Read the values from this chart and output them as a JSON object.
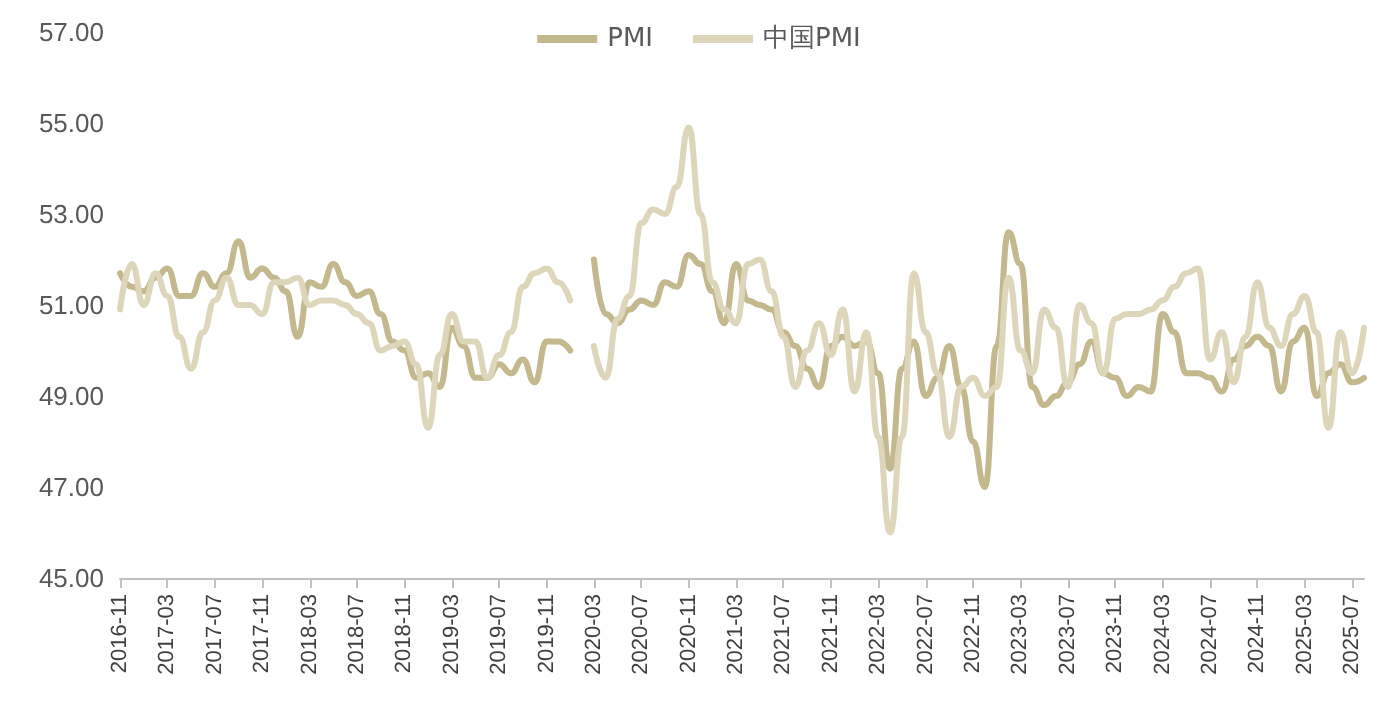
{
  "chart_data": {
    "type": "line",
    "categories": [
      "2016-11",
      null,
      null,
      null,
      "2017-03",
      null,
      null,
      null,
      "2017-07",
      null,
      null,
      null,
      "2017-11",
      null,
      null,
      null,
      "2018-03",
      null,
      null,
      null,
      "2018-07",
      null,
      null,
      null,
      "2018-11",
      null,
      null,
      null,
      "2019-03",
      null,
      null,
      null,
      "2019-07",
      null,
      null,
      null,
      "2019-11",
      null,
      null,
      null,
      "2020-03",
      null,
      null,
      null,
      "2020-07",
      null,
      null,
      null,
      "2020-11",
      null,
      null,
      null,
      "2021-03",
      null,
      null,
      null,
      "2021-07",
      null,
      null,
      null,
      "2021-11",
      null,
      null,
      null,
      "2022-03",
      null,
      null,
      null,
      "2022-07",
      null,
      null,
      null,
      "2022-11",
      null,
      null,
      null,
      "2023-03",
      null,
      null,
      null,
      "2023-07",
      null,
      null,
      null,
      "2023-11",
      null,
      null,
      null,
      "2024-03",
      null,
      null,
      null,
      "2024-07",
      null,
      null,
      null,
      "2024-11",
      null,
      null,
      null,
      "2025-03",
      null,
      null,
      null,
      "2025-07",
      null
    ],
    "series": [
      {
        "name": "PMI",
        "color": "#c4b88e",
        "values": [
          51.7,
          51.4,
          51.3,
          51.6,
          51.8,
          51.2,
          51.2,
          51.7,
          51.4,
          51.7,
          52.4,
          51.6,
          51.8,
          51.6,
          51.3,
          50.3,
          51.5,
          51.4,
          51.9,
          51.5,
          51.2,
          51.3,
          50.8,
          50.2,
          50.0,
          49.4,
          49.5,
          49.2,
          50.5,
          50.1,
          49.4,
          49.4,
          49.7,
          49.5,
          49.8,
          49.3,
          50.2,
          50.2,
          50.0,
          null,
          52.0,
          50.8,
          50.6,
          50.9,
          51.1,
          51.0,
          51.5,
          51.4,
          52.1,
          51.9,
          51.3,
          50.6,
          51.9,
          51.1,
          51.0,
          50.9,
          50.4,
          50.1,
          49.6,
          49.2,
          50.1,
          50.3,
          50.1,
          50.2,
          49.5,
          47.4,
          49.6,
          50.2,
          49.0,
          49.4,
          50.1,
          49.2,
          48.0,
          47.0,
          50.1,
          52.6,
          51.9,
          49.2,
          48.8,
          49.0,
          49.3,
          49.7,
          50.2,
          49.5,
          49.4,
          49.0,
          49.2,
          49.1,
          50.8,
          50.4,
          49.5,
          49.5,
          49.4,
          49.1,
          49.8,
          50.1,
          50.3,
          50.1,
          49.1,
          50.2,
          50.5,
          49.0,
          49.5,
          49.7,
          49.3,
          49.4
        ]
      },
      {
        "name": "中国PMI",
        "color": "#ddd6ba",
        "values": [
          50.9,
          51.9,
          51.0,
          51.7,
          51.2,
          50.3,
          49.6,
          50.4,
          51.1,
          51.6,
          51.0,
          51.0,
          50.8,
          51.5,
          51.5,
          51.6,
          51.0,
          51.1,
          51.1,
          51.0,
          50.8,
          50.6,
          50.0,
          50.1,
          50.2,
          49.7,
          48.3,
          49.9,
          50.8,
          50.2,
          50.2,
          49.4,
          49.9,
          50.4,
          51.4,
          51.7,
          51.8,
          51.5,
          51.1,
          null,
          50.1,
          49.4,
          50.7,
          51.2,
          52.8,
          53.1,
          53.0,
          53.6,
          54.9,
          53.0,
          51.5,
          50.9,
          50.6,
          51.9,
          52.0,
          51.3,
          50.3,
          49.2,
          50.0,
          50.6,
          49.9,
          50.9,
          49.1,
          50.4,
          48.1,
          46.0,
          48.1,
          51.7,
          50.4,
          49.5,
          48.1,
          49.2,
          49.4,
          49.0,
          49.2,
          51.6,
          50.0,
          49.5,
          50.9,
          50.5,
          49.2,
          51.0,
          50.6,
          49.5,
          50.7,
          50.8,
          50.8,
          50.9,
          51.1,
          51.4,
          51.7,
          51.8,
          49.8,
          50.4,
          49.3,
          50.3,
          51.5,
          50.5,
          50.1,
          50.8,
          51.2,
          50.4,
          48.3,
          50.4,
          49.5,
          50.5
        ]
      }
    ],
    "ylim": [
      45,
      57
    ],
    "yticks": [
      {
        "value": 45,
        "label": "45.00"
      },
      {
        "value": 47,
        "label": "47.00"
      },
      {
        "value": 49,
        "label": "49.00"
      },
      {
        "value": 51,
        "label": "51.00"
      },
      {
        "value": 53,
        "label": "53.00"
      },
      {
        "value": 55,
        "label": "55.00"
      },
      {
        "value": 57,
        "label": "57.00"
      }
    ],
    "grid": false,
    "legend": "top",
    "marker": "none",
    "line_style": "solid"
  }
}
